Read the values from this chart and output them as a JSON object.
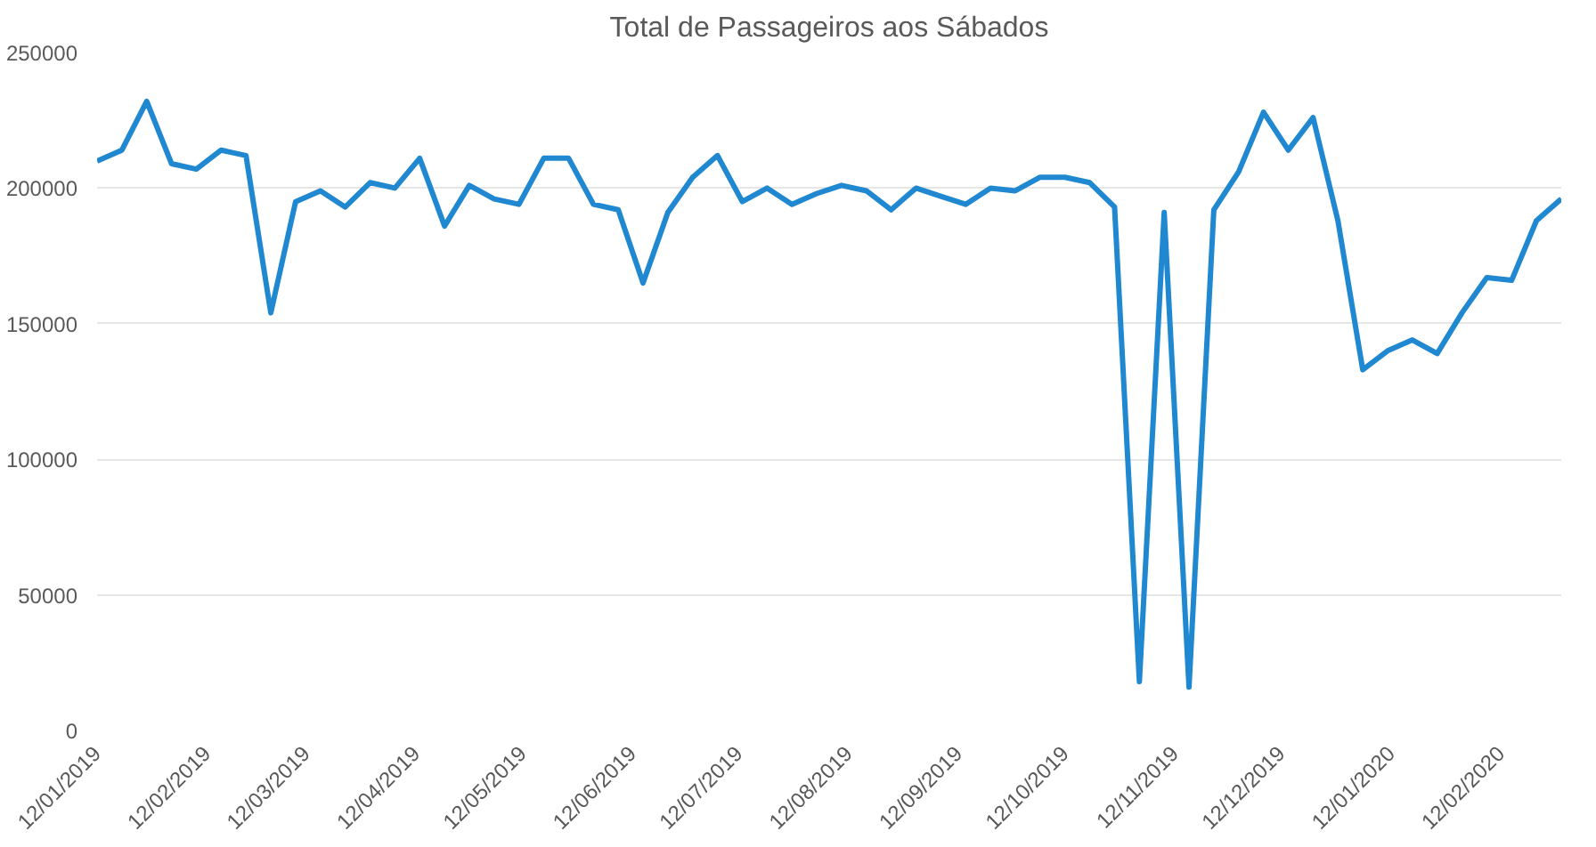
{
  "chart_data": {
    "type": "line",
    "title": "Total de Passageiros aos Sábados",
    "x": [
      "2019-01-12",
      "2019-01-19",
      "2019-01-26",
      "2019-02-02",
      "2019-02-09",
      "2019-02-16",
      "2019-02-23",
      "2019-03-02",
      "2019-03-09",
      "2019-03-16",
      "2019-03-23",
      "2019-03-30",
      "2019-04-06",
      "2019-04-13",
      "2019-04-20",
      "2019-04-27",
      "2019-05-04",
      "2019-05-11",
      "2019-05-18",
      "2019-05-25",
      "2019-06-01",
      "2019-06-08",
      "2019-06-15",
      "2019-06-22",
      "2019-06-29",
      "2019-07-06",
      "2019-07-13",
      "2019-07-20",
      "2019-07-27",
      "2019-08-03",
      "2019-08-10",
      "2019-08-17",
      "2019-08-24",
      "2019-08-31",
      "2019-09-07",
      "2019-09-14",
      "2019-09-21",
      "2019-09-28",
      "2019-10-05",
      "2019-10-12",
      "2019-10-19",
      "2019-10-26",
      "2019-11-02",
      "2019-11-09",
      "2019-11-16",
      "2019-11-23",
      "2019-11-30",
      "2019-12-07",
      "2019-12-14",
      "2019-12-21",
      "2019-12-28",
      "2020-01-04",
      "2020-01-11",
      "2020-01-18",
      "2020-01-25",
      "2020-02-01",
      "2020-02-08",
      "2020-02-15",
      "2020-02-22",
      "2020-02-29"
    ],
    "series": [
      {
        "color": "#1f88d0",
        "values": [
          210000,
          214000,
          232000,
          209000,
          207000,
          214000,
          212000,
          154000,
          195000,
          199000,
          193000,
          202000,
          200000,
          211000,
          186000,
          201000,
          196000,
          194000,
          211000,
          211000,
          194000,
          192000,
          165000,
          191000,
          204000,
          212000,
          195000,
          200000,
          194000,
          198000,
          201000,
          199000,
          192000,
          200000,
          197000,
          194000,
          200000,
          199000,
          204000,
          204000,
          202000,
          193000,
          18000,
          191000,
          16000,
          192000,
          206000,
          228000,
          214000,
          226000,
          188000,
          133000,
          140000,
          144000,
          139000,
          154000,
          167000,
          166000,
          188000,
          196000
        ]
      }
    ],
    "xlim": [
      "2019-01-12",
      "2020-02-29"
    ],
    "xticks": [
      {
        "value": "2019-01-12",
        "label": "12/01/2019"
      },
      {
        "value": "2019-02-12",
        "label": "12/02/2019"
      },
      {
        "value": "2019-03-12",
        "label": "12/03/2019"
      },
      {
        "value": "2019-04-12",
        "label": "12/04/2019"
      },
      {
        "value": "2019-05-12",
        "label": "12/05/2019"
      },
      {
        "value": "2019-06-12",
        "label": "12/06/2019"
      },
      {
        "value": "2019-07-12",
        "label": "12/07/2019"
      },
      {
        "value": "2019-08-12",
        "label": "12/08/2019"
      },
      {
        "value": "2019-09-12",
        "label": "12/09/2019"
      },
      {
        "value": "2019-10-12",
        "label": "12/10/2019"
      },
      {
        "value": "2019-11-12",
        "label": "12/11/2019"
      },
      {
        "value": "2019-12-12",
        "label": "12/12/2019"
      },
      {
        "value": "2020-01-12",
        "label": "12/01/2020"
      },
      {
        "value": "2020-02-12",
        "label": "12/02/2020"
      }
    ],
    "ylim": [
      0,
      250000
    ],
    "yticks": [
      0,
      50000,
      100000,
      150000,
      200000,
      250000
    ],
    "grid": "y",
    "marker": "none",
    "line_style": "solid"
  }
}
